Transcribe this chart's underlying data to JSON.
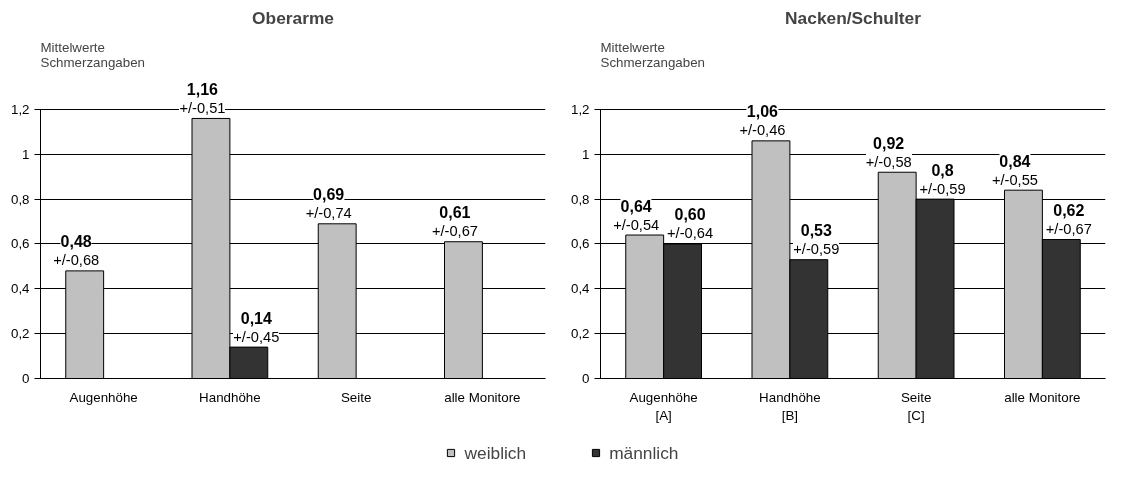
{
  "chart_data": [
    {
      "type": "bar",
      "title": "Oberarme",
      "ylabel": "Mittelwerte\nSchmerzangaben",
      "categories": [
        "Augenhöhe",
        "Handhöhe",
        "Seite",
        "alle Monitore"
      ],
      "series": [
        {
          "name": "weiblich",
          "color": "#c0c0c0",
          "values": [
            0.48,
            1.16,
            0.69,
            0.61
          ],
          "value_labels": [
            "0,48\n+/-0,68",
            "1,16\n+/-0,51",
            "0,69\n+/-0,74",
            "0,61\n+/-0,67"
          ]
        },
        {
          "name": "männlich",
          "color": "#333333",
          "values": [
            null,
            0.14,
            null,
            null
          ],
          "value_labels": [
            null,
            "0,14\n+/-0,45",
            null,
            null
          ]
        }
      ],
      "ylim": [
        0,
        1.2
      ],
      "yticks": [
        0,
        {
          "value": 0.2,
          "label": "0,2"
        },
        {
          "value": 0.4,
          "label": "0,4"
        },
        {
          "value": 0.6,
          "label": "0,6"
        },
        {
          "value": 0.8,
          "label": "0,8"
        },
        1,
        {
          "value": 1.2,
          "label": "1,2"
        }
      ],
      "grid": "y",
      "legend": "bottom"
    },
    {
      "type": "bar",
      "title": "Nacken/Schulter",
      "ylabel": "Mittelwerte\nSchmerzangaben",
      "categories": [
        "Augenhöhe\n[A]",
        "Handhöhe\n[B]",
        "Seite\n[C]",
        "alle Monitore"
      ],
      "series": [
        {
          "color": "#c0c0c0",
          "values": [
            0.64,
            1.06,
            0.92,
            0.84
          ],
          "value_labels": [
            "0,64\n+/-0,54",
            "1,06\n+/-0,46",
            "0,92\n+/-0,58",
            "0,84\n+/-0,55"
          ]
        },
        {
          "color": "#333333",
          "values": [
            0.6,
            0.53,
            0.8,
            0.62
          ],
          "value_labels": [
            "0,60\n+/-0,64",
            "0,53\n+/-0,59",
            "0,8\n+/-0,59",
            "0,62\n+/-0,67"
          ]
        }
      ],
      "ylim": [
        0,
        1.2
      ],
      "yticks": [
        0,
        {
          "value": 0.2,
          "label": "0,2"
        },
        {
          "value": 0.4,
          "label": "0,4"
        },
        {
          "value": 0.6,
          "label": "0,6"
        },
        {
          "value": 0.8,
          "label": "0,8"
        },
        1,
        {
          "value": 1.2,
          "label": "1,2"
        }
      ],
      "grid": "y"
    }
  ]
}
